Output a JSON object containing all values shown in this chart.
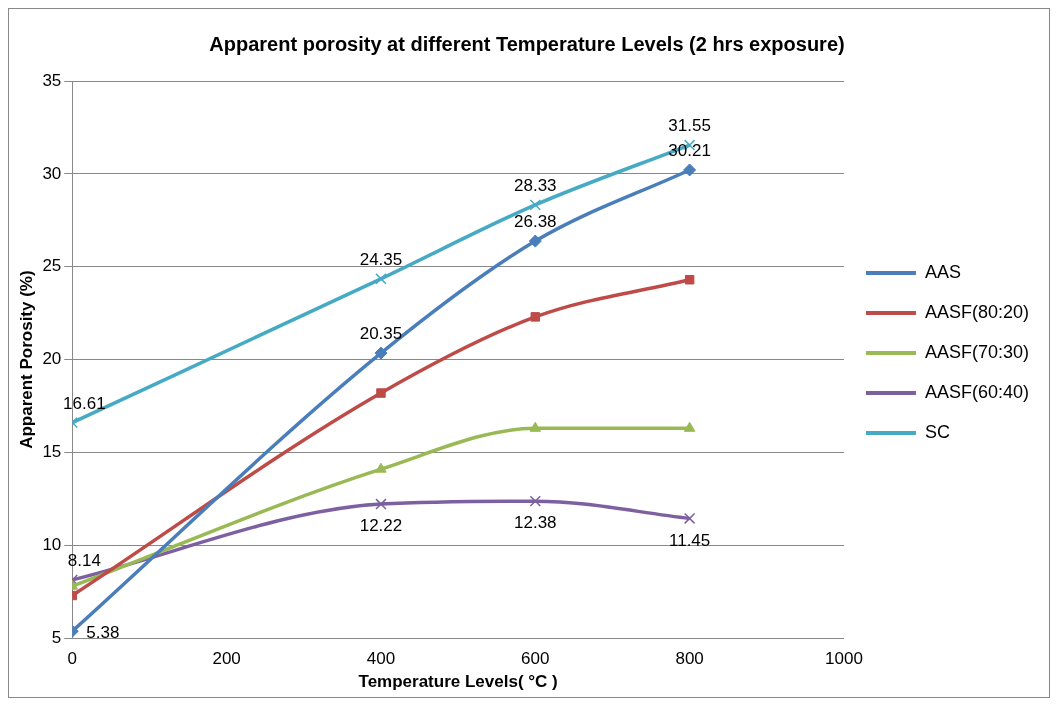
{
  "chart_data": {
    "type": "line",
    "title": "Apparent porosity at different Temperature Levels (2 hrs exposure)",
    "xlabel": "Temperature Levels( °C )",
    "ylabel": "Apparent Porosity (%)",
    "x": [
      0,
      400,
      600,
      800
    ],
    "xlim": [
      0,
      1000
    ],
    "xticks": [
      0,
      200,
      400,
      600,
      800,
      1000
    ],
    "ylim": [
      5,
      35
    ],
    "yticks": [
      5,
      10,
      15,
      20,
      25,
      30,
      35
    ],
    "grid": "y",
    "legend": "right",
    "series": [
      {
        "name": "AAS",
        "color": "#4a7ebb",
        "marker": "diamond",
        "values": [
          5.38,
          20.35,
          26.38,
          30.21
        ],
        "value_labels": [
          "5.38",
          "20.35",
          "26.38",
          "30.21"
        ]
      },
      {
        "name": "AASF(80:20)",
        "color": "#be4b48",
        "marker": "square",
        "values": [
          7.3,
          18.2,
          22.3,
          24.3
        ]
      },
      {
        "name": "AASF(70:30)",
        "color": "#98b954",
        "marker": "triangle",
        "values": [
          7.8,
          14.1,
          16.3,
          16.3
        ]
      },
      {
        "name": "AASF(60:40)",
        "color": "#7d60a0",
        "marker": "cross",
        "values": [
          8.14,
          12.22,
          12.38,
          11.45
        ],
        "value_labels": [
          "8.14",
          "12.22",
          "12.38",
          "11.45"
        ]
      },
      {
        "name": "SC",
        "color": "#46aac5",
        "marker": "cross",
        "values": [
          16.61,
          24.35,
          28.33,
          31.55
        ],
        "value_labels": [
          "16.61",
          "24.35",
          "28.33",
          "31.55"
        ]
      }
    ]
  }
}
